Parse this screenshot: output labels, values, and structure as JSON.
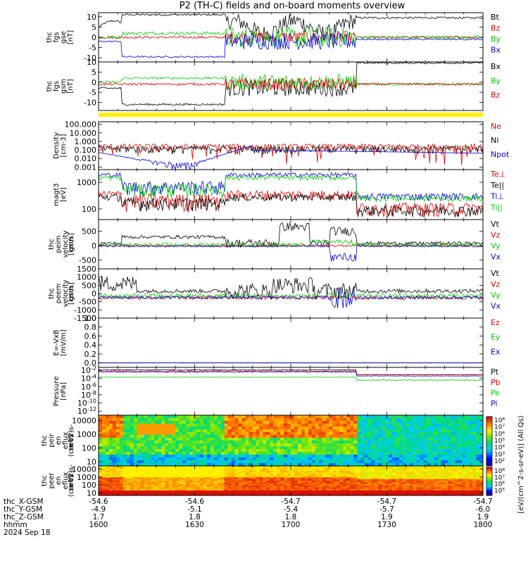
{
  "title": "P2 (TH-C) fields and on-board moments overview",
  "colors": {
    "black": "#000000",
    "red": "#e00000",
    "green": "#00cc00",
    "blue": "#0000dd",
    "yellow": "#ffee00"
  },
  "chart_data": [
    {
      "type": "line",
      "id": "fgs-gse",
      "ylabel": [
        "thc",
        "fgs",
        "gse",
        "[nT]"
      ],
      "ylim": [
        -12,
        12
      ],
      "ticks": [
        "10",
        "5",
        "0",
        "-5",
        "-10"
      ],
      "tick_values": [
        10,
        5,
        0,
        -5,
        -10
      ],
      "legend": [
        {
          "name": "Bt",
          "color": "#000000"
        },
        {
          "name": "Bz",
          "color": "#e00000"
        },
        {
          "name": "By",
          "color": "#00cc00"
        },
        {
          "name": "Bx",
          "color": "#0000dd"
        }
      ]
    },
    {
      "type": "line",
      "id": "fgs-gsm",
      "ylabel": [
        "thc",
        "fgs",
        "gsm",
        "[nT]"
      ],
      "ylim": [
        -14,
        10
      ],
      "ticks": [
        "10",
        "5",
        "0",
        "-5",
        "-10"
      ],
      "tick_values": [
        10,
        5,
        0,
        -5,
        -10
      ],
      "legend": [
        {
          "name": "Bx",
          "color": "#000000"
        },
        {
          "name": "By",
          "color": "#00cc00"
        },
        {
          "name": "Bz",
          "color": "#e00000"
        }
      ]
    },
    {
      "type": "bar",
      "id": "quality-flag",
      "color": "#ffee00"
    },
    {
      "type": "line",
      "id": "density",
      "ylabel": [
        "Density",
        "[cm-3]"
      ],
      "scale": "log",
      "ylim": [
        0.0005,
        200
      ],
      "ticks": [
        "100.000",
        "10.000",
        "1.000",
        "0.100",
        "0.010",
        "0.001"
      ],
      "tick_values": [
        100,
        10,
        1,
        0.1,
        0.01,
        0.001
      ],
      "legend": [
        {
          "name": "Ne",
          "color": "#e00000"
        },
        {
          "name": "Ni",
          "color": "#000000"
        },
        {
          "name": "Npot",
          "color": "#0000dd"
        }
      ]
    },
    {
      "type": "line",
      "id": "temperature",
      "ylabel": [
        "magt3",
        "[eV]"
      ],
      "scale": "log",
      "ylim": [
        40,
        3000
      ],
      "ticks": [
        "1000",
        "100"
      ],
      "tick_values": [
        1000,
        100
      ],
      "legend": [
        {
          "name": "Te⊥",
          "color": "#e00000"
        },
        {
          "name": "Te||",
          "color": "#000000"
        },
        {
          "name": "Ti⊥",
          "color": "#0000dd"
        },
        {
          "name": "Ti||",
          "color": "#00cc00"
        }
      ]
    },
    {
      "type": "line",
      "id": "peim-velocity",
      "ylabel": [
        "thc",
        "peim",
        "velocity",
        "gsm",
        "[km/s]"
      ],
      "ylim": [
        -800,
        900
      ],
      "ticks": [
        "500",
        "0",
        "-500"
      ],
      "tick_values": [
        500,
        0,
        -500
      ],
      "legend": [
        {
          "name": "Vt",
          "color": "#000000"
        },
        {
          "name": "Vz",
          "color": "#e00000"
        },
        {
          "name": "Vy",
          "color": "#00cc00"
        },
        {
          "name": "Vx",
          "color": "#0000dd"
        }
      ]
    },
    {
      "type": "line",
      "id": "peem-velocity",
      "ylabel": [
        "thc",
        "peem",
        "velocity",
        "gsm",
        "[km/s]"
      ],
      "ylim": [
        -1500,
        1500
      ],
      "ticks": [
        "1500",
        "1000",
        "500",
        "0",
        "-500",
        "-1000",
        "-1500"
      ],
      "tick_values": [
        1500,
        1000,
        500,
        0,
        -500,
        -1000,
        -1500
      ],
      "legend": [
        {
          "name": "Vt",
          "color": "#000000"
        },
        {
          "name": "Vz",
          "color": "#e00000"
        },
        {
          "name": "Vy",
          "color": "#00cc00"
        },
        {
          "name": "Vx",
          "color": "#0000dd"
        }
      ]
    },
    {
      "type": "line",
      "id": "efield",
      "ylabel": [
        "E=-VxB",
        "[mV/m]"
      ],
      "ylim": [
        -0.1,
        1.0
      ],
      "ticks": [
        "1.0",
        "0.8",
        "0.6",
        "0.4",
        "0.2",
        "0.0"
      ],
      "tick_values": [
        1.0,
        0.8,
        0.6,
        0.4,
        0.2,
        0.0
      ],
      "legend": [
        {
          "name": "Ez",
          "color": "#e00000"
        },
        {
          "name": "Ey",
          "color": "#00cc00"
        },
        {
          "name": "Ex",
          "color": "#0000dd"
        }
      ]
    },
    {
      "type": "line",
      "id": "pressure",
      "ylabel": [
        "Pressure",
        "[nPa]"
      ],
      "scale": "log",
      "ylim": [
        1e-13,
        0.05
      ],
      "ticks": [
        "10-2",
        "10-4",
        "10-6",
        "10-8",
        "10-10",
        "10-12"
      ],
      "tick_values": [
        -2,
        -4,
        -6,
        -8,
        -10,
        -12
      ],
      "legend": [
        {
          "name": "Pt",
          "color": "#000000"
        },
        {
          "name": "Pb",
          "color": "#e00000"
        },
        {
          "name": "Pe",
          "color": "#00cc00"
        },
        {
          "name": "Pi",
          "color": "#0000dd"
        }
      ]
    },
    {
      "type": "heatmap",
      "id": "peir-eflux",
      "ylabel": [
        "thc",
        "peir",
        "en",
        "eflux",
        "eV/",
        "(cm^2-s-",
        "sr-eV)"
      ],
      "scale": "log",
      "ylim": [
        5,
        25000
      ],
      "ticks": [
        "10000",
        "1000",
        "100",
        "10"
      ],
      "tick_values": [
        10000,
        1000,
        100,
        10
      ]
    },
    {
      "type": "heatmap",
      "id": "peer-eflux",
      "ylabel": [
        "thc",
        "peer",
        "en",
        "eflux",
        "eV/",
        "(cm^2-s-",
        "sr-eV)"
      ],
      "scale": "log",
      "ylim": [
        5,
        25000
      ],
      "ticks": [
        "10000",
        "1000",
        "100",
        "10"
      ],
      "tick_values": [
        10000,
        1000,
        100,
        10
      ]
    }
  ],
  "colorbar": {
    "label": "[eV/(cm^2-s-sr-eV)] (All Qs)",
    "ticks_upper": [
      "10⁸",
      "10⁷",
      "10⁶",
      "10⁵",
      "10⁴",
      "10³",
      "10²"
    ],
    "ticks_lower": [
      "10⁸",
      "10⁷",
      "10⁶",
      "10⁵",
      "10⁴",
      "10³",
      "10²"
    ]
  },
  "x_axis": {
    "row_labels": [
      "thc_X-GSM",
      "thc_Y-GSM",
      "thc_Z-GSM",
      "hhmm",
      "2024 Sep 18"
    ],
    "columns": [
      {
        "x": "-54.6",
        "y": "-4.9",
        "z": "1.7",
        "t": "1600"
      },
      {
        "x": "-54.6",
        "y": "-5.1",
        "z": "1.8",
        "t": "1630"
      },
      {
        "x": "-54.7",
        "y": "-5.4",
        "z": "1.8",
        "t": "1700"
      },
      {
        "x": "-54.7",
        "y": "-5.7",
        "z": "1.9",
        "t": "1730"
      },
      {
        "x": "-54.7",
        "y": "-6.0",
        "z": "1.9",
        "t": "1800"
      }
    ]
  }
}
